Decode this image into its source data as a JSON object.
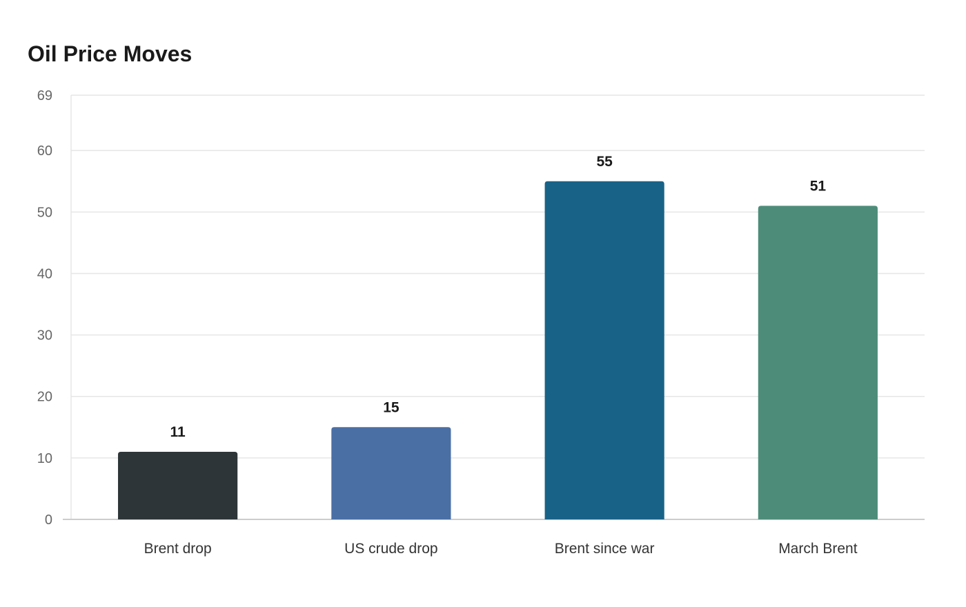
{
  "chart_data": {
    "type": "bar",
    "title": "Oil Price Moves",
    "xlabel": "",
    "ylabel": "",
    "categories": [
      "Brent drop",
      "US crude drop",
      "Brent since war",
      "March Brent"
    ],
    "values": [
      11,
      15,
      55,
      51
    ],
    "colors": [
      "#2e3538",
      "#4a6fa5",
      "#186287",
      "#4e8c7a"
    ],
    "ylim": [
      0,
      69
    ],
    "yticks": [
      0,
      10,
      20,
      30,
      40,
      50,
      60,
      69
    ],
    "grid": true,
    "legend": "none"
  },
  "colors": {
    "grid": "#e6e6e6",
    "axis": "#cccccc",
    "tick_text": "#666666",
    "category_text": "#333333",
    "value_text": "#1a1a1a"
  }
}
